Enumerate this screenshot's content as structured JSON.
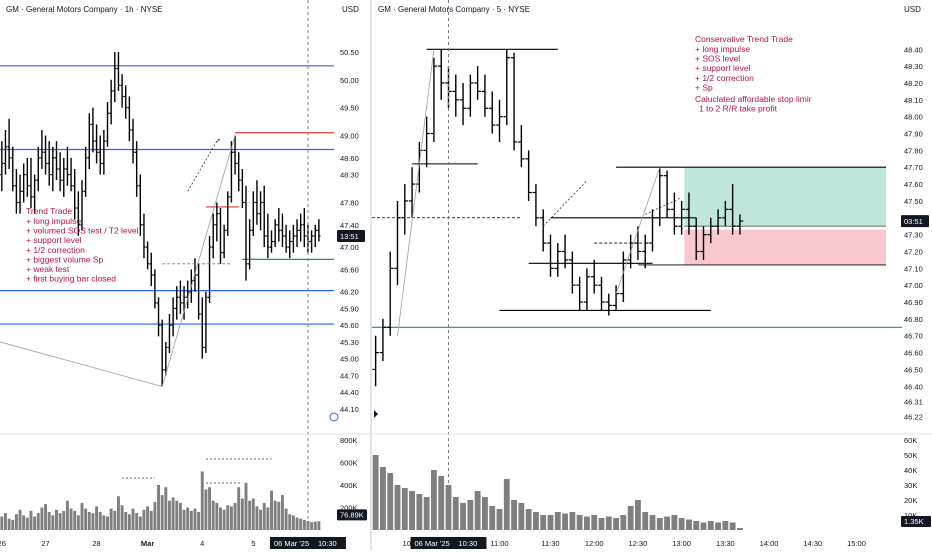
{
  "colors": {
    "bar": "#000000",
    "blue_level": "#2962ff",
    "red_level": "#e53935",
    "green_level": "#089981",
    "annotation_text": "#b7124e",
    "volume_bar": "#7f7f7f",
    "tp_zone": "#bfe6dc",
    "sl_zone": "#f9c8cf",
    "price_tag_bg": "#131722"
  },
  "chart_data": [
    {
      "type": "bar",
      "title": "GM · General Motors Company · 1h · NYSE",
      "currency": "USD",
      "ylim": [
        43.9,
        51.0
      ],
      "y_ticks": [
        "50.50",
        "50.00",
        "49.50",
        "49.00",
        "48.60",
        "48.30",
        "47.80",
        "47.40",
        "47.00",
        "46.60",
        "46.20",
        "45.90",
        "45.60",
        "45.30",
        "45.00",
        "44.70",
        "44.40",
        "44.10"
      ],
      "x_ticks": [
        "26",
        "27",
        "28",
        "Mar",
        "4",
        "5",
        "6"
      ],
      "x_tick_index": [
        0,
        12,
        26,
        40,
        55,
        69,
        84
      ],
      "current_price_label": "13:51",
      "date_tag": "06 Mar '25",
      "time_tag": "10:30",
      "ohlc": [
        [
          48.3,
          48.9,
          48.0,
          48.5
        ],
        [
          48.5,
          49.1,
          48.3,
          48.8
        ],
        [
          48.8,
          49.3,
          48.4,
          48.6
        ],
        [
          48.6,
          48.8,
          48.0,
          48.1
        ],
        [
          48.1,
          48.4,
          47.6,
          47.8
        ],
        [
          47.8,
          48.3,
          47.6,
          48.0
        ],
        [
          48.0,
          48.5,
          47.8,
          48.3
        ],
        [
          48.3,
          48.6,
          47.9,
          48.1
        ],
        [
          48.1,
          48.6,
          47.7,
          47.9
        ],
        [
          47.9,
          48.3,
          47.6,
          48.2
        ],
        [
          48.2,
          48.8,
          48.0,
          48.6
        ],
        [
          48.6,
          49.1,
          48.4,
          48.7
        ],
        [
          48.7,
          49.0,
          48.3,
          48.5
        ],
        [
          48.5,
          48.9,
          48.1,
          48.3
        ],
        [
          48.3,
          48.8,
          48.0,
          48.6
        ],
        [
          48.6,
          48.9,
          48.2,
          48.4
        ],
        [
          48.4,
          48.7,
          48.0,
          48.2
        ],
        [
          48.2,
          48.6,
          47.9,
          48.4
        ],
        [
          48.4,
          48.8,
          48.1,
          48.3
        ],
        [
          48.3,
          48.6,
          48.0,
          48.1
        ],
        [
          48.1,
          48.4,
          47.5,
          47.7
        ],
        [
          47.7,
          48.0,
          47.2,
          47.4
        ],
        [
          47.4,
          48.2,
          47.3,
          48.0
        ],
        [
          48.0,
          48.8,
          47.9,
          48.6
        ],
        [
          48.6,
          49.4,
          48.4,
          49.2
        ],
        [
          49.2,
          49.5,
          48.7,
          48.9
        ],
        [
          48.9,
          49.2,
          48.5,
          48.7
        ],
        [
          48.7,
          49.0,
          48.3,
          48.5
        ],
        [
          48.5,
          49.1,
          48.3,
          48.9
        ],
        [
          48.9,
          49.6,
          48.8,
          49.4
        ],
        [
          49.4,
          50.0,
          49.2,
          49.8
        ],
        [
          49.8,
          50.5,
          49.6,
          50.2
        ],
        [
          50.2,
          50.5,
          49.8,
          49.9
        ],
        [
          49.9,
          50.1,
          49.5,
          49.7
        ],
        [
          49.7,
          49.9,
          49.3,
          49.5
        ],
        [
          49.5,
          49.7,
          48.9,
          49.1
        ],
        [
          49.1,
          49.3,
          48.5,
          48.7
        ],
        [
          48.7,
          48.9,
          47.9,
          48.1
        ],
        [
          48.1,
          48.3,
          47.2,
          47.4
        ],
        [
          47.4,
          47.6,
          46.8,
          47.0
        ],
        [
          47.0,
          47.1,
          46.6,
          46.7
        ],
        [
          46.7,
          46.9,
          46.3,
          46.5
        ],
        [
          46.5,
          46.6,
          45.9,
          46.0
        ],
        [
          46.0,
          46.1,
          45.4,
          45.6
        ],
        [
          45.6,
          45.7,
          44.5,
          44.8
        ],
        [
          44.8,
          45.3,
          44.7,
          45.2
        ],
        [
          45.2,
          45.8,
          45.1,
          45.6
        ],
        [
          45.6,
          46.1,
          45.4,
          45.9
        ],
        [
          45.9,
          46.3,
          45.7,
          46.1
        ],
        [
          46.1,
          46.4,
          45.8,
          46.0
        ],
        [
          46.0,
          46.3,
          45.7,
          46.1
        ],
        [
          46.1,
          46.4,
          45.9,
          46.2
        ],
        [
          46.2,
          46.6,
          46.0,
          46.4
        ],
        [
          46.4,
          46.8,
          46.2,
          46.5
        ],
        [
          46.5,
          46.7,
          45.7,
          45.8
        ],
        [
          45.8,
          46.1,
          45.0,
          45.2
        ],
        [
          45.2,
          46.2,
          45.1,
          46.1
        ],
        [
          46.1,
          47.2,
          46.0,
          47.0
        ],
        [
          47.0,
          47.6,
          46.8,
          47.4
        ],
        [
          47.4,
          47.8,
          47.1,
          47.6
        ],
        [
          47.6,
          47.7,
          46.7,
          46.9
        ],
        [
          46.9,
          47.4,
          46.8,
          47.3
        ],
        [
          47.3,
          48.0,
          47.2,
          47.9
        ],
        [
          47.9,
          48.9,
          47.8,
          48.7
        ],
        [
          48.7,
          49.0,
          48.3,
          48.5
        ],
        [
          48.5,
          48.7,
          48.0,
          48.2
        ],
        [
          48.2,
          48.4,
          47.7,
          47.8
        ],
        [
          47.8,
          48.1,
          46.4,
          46.7
        ],
        [
          46.7,
          47.5,
          46.6,
          47.3
        ],
        [
          47.3,
          48.0,
          47.2,
          47.8
        ],
        [
          47.8,
          48.2,
          47.4,
          47.6
        ],
        [
          47.6,
          48.0,
          47.3,
          47.8
        ],
        [
          47.8,
          48.1,
          47.0,
          47.2
        ],
        [
          47.2,
          47.6,
          46.8,
          47.0
        ],
        [
          47.0,
          47.3,
          46.9,
          47.1
        ],
        [
          47.1,
          47.5,
          47.0,
          47.4
        ],
        [
          47.4,
          47.7,
          47.1,
          47.3
        ],
        [
          47.3,
          47.6,
          47.0,
          47.2
        ],
        [
          47.2,
          47.4,
          46.9,
          47.0
        ],
        [
          47.0,
          47.3,
          46.8,
          47.1
        ],
        [
          47.1,
          47.4,
          46.9,
          47.2
        ],
        [
          47.2,
          47.5,
          47.0,
          47.3
        ],
        [
          47.3,
          47.6,
          47.1,
          47.4
        ],
        [
          47.4,
          47.7,
          47.0,
          47.2
        ],
        [
          47.2,
          47.4,
          46.9,
          47.1
        ],
        [
          47.1,
          47.3,
          46.9,
          47.2
        ],
        [
          47.2,
          47.4,
          47.0,
          47.3
        ],
        [
          47.3,
          47.5,
          47.1,
          47.2
        ]
      ],
      "volume": {
        "ylim": [
          0,
          800000
        ],
        "y_ticks": [
          "800K",
          "600K",
          "400K",
          "200K"
        ],
        "current_label": "76.89K",
        "values": [
          120,
          150,
          100,
          90,
          140,
          180,
          130,
          110,
          170,
          120,
          150,
          200,
          230,
          160,
          130,
          180,
          150,
          170,
          260,
          190,
          170,
          130,
          240,
          190,
          160,
          150,
          210,
          160,
          130,
          120,
          190,
          170,
          300,
          220,
          160,
          140,
          190,
          150,
          120,
          180,
          210,
          170,
          250,
          400,
          310,
          380,
          260,
          290,
          260,
          240,
          180,
          200,
          170,
          190,
          160,
          520,
          360,
          380,
          260,
          240,
          200,
          180,
          220,
          210,
          240,
          380,
          280,
          420,
          260,
          280,
          210,
          180,
          240,
          200,
          350,
          260,
          250,
          310,
          190,
          140,
          130,
          110,
          100,
          90,
          80,
          70,
          75,
          77
        ]
      },
      "annotations": {
        "title": "Trend Trade",
        "lines": [
          "+ long impulse",
          "+ volumed SOS test / T2 level",
          "+ support level",
          "+ 1/2 correction",
          "+ biggest volume Sp",
          "+ weak test",
          "+ first buying bar closed"
        ]
      },
      "levels": {
        "blue": [
          50.25,
          48.75,
          46.22,
          45.62
        ],
        "red": 49.05,
        "green": 46.78,
        "red_short": 47.72
      }
    },
    {
      "type": "bar",
      "title": "GM · General Motors Company · 5 · NYSE",
      "currency": "USD",
      "ylim": [
        46.2,
        48.55
      ],
      "y_ticks": [
        "48.40",
        "48.30",
        "48.20",
        "48.10",
        "48.00",
        "47.90",
        "47.80",
        "47.70",
        "47.60",
        "47.50",
        "47.40",
        "47.30",
        "47.20",
        "47.10",
        "47.00",
        "46.90",
        "46.80",
        "46.70",
        "46.60",
        "46.50",
        "46.40",
        "46.31",
        "46.22"
      ],
      "x_ticks": [
        "10:00",
        "11:00",
        "11:30",
        "12:00",
        "12:30",
        "13:00",
        "13:30",
        "14:00",
        "14:30",
        "15:00"
      ],
      "x_tick_index": [
        5,
        17,
        24,
        30,
        36,
        42,
        48,
        54,
        60,
        66
      ],
      "current_price_label": "03:51",
      "date_tag": "06 Mar '25",
      "time_tag": "10:30",
      "ohlc": [
        [
          46.5,
          46.7,
          46.4,
          46.6
        ],
        [
          46.6,
          46.8,
          46.55,
          46.75
        ],
        [
          46.75,
          47.2,
          46.7,
          47.1
        ],
        [
          47.1,
          47.5,
          47.0,
          47.4
        ],
        [
          47.4,
          47.6,
          47.3,
          47.5
        ],
        [
          47.5,
          47.7,
          47.4,
          47.6
        ],
        [
          47.6,
          47.85,
          47.55,
          47.8
        ],
        [
          47.8,
          48.0,
          47.7,
          47.9
        ],
        [
          47.9,
          48.35,
          47.85,
          48.3
        ],
        [
          48.3,
          48.4,
          48.1,
          48.2
        ],
        [
          48.2,
          48.3,
          48.05,
          48.15
        ],
        [
          48.15,
          48.25,
          48.0,
          48.1
        ],
        [
          48.1,
          48.2,
          47.95,
          48.05
        ],
        [
          48.05,
          48.25,
          48.0,
          48.2
        ],
        [
          48.2,
          48.3,
          48.1,
          48.15
        ],
        [
          48.15,
          48.25,
          48.0,
          48.05
        ],
        [
          48.05,
          48.15,
          47.9,
          47.95
        ],
        [
          47.95,
          48.1,
          47.85,
          48.0
        ],
        [
          48.0,
          48.4,
          47.95,
          48.35
        ],
        [
          48.35,
          48.38,
          47.8,
          47.85
        ],
        [
          47.85,
          47.95,
          47.7,
          47.75
        ],
        [
          47.75,
          47.8,
          47.5,
          47.55
        ],
        [
          47.55,
          47.6,
          47.35,
          47.4
        ],
        [
          47.4,
          47.45,
          47.2,
          47.25
        ],
        [
          47.25,
          47.3,
          47.05,
          47.1
        ],
        [
          47.1,
          47.25,
          47.05,
          47.2
        ],
        [
          47.2,
          47.3,
          47.1,
          47.15
        ],
        [
          47.15,
          47.2,
          46.95,
          47.0
        ],
        [
          47.0,
          47.05,
          46.85,
          46.9
        ],
        [
          46.9,
          47.1,
          46.85,
          47.05
        ],
        [
          47.05,
          47.15,
          46.95,
          47.0
        ],
        [
          47.0,
          47.05,
          46.85,
          46.9
        ],
        [
          46.9,
          46.95,
          46.82,
          46.88
        ],
        [
          46.88,
          47.0,
          46.85,
          46.95
        ],
        [
          46.95,
          47.2,
          46.9,
          47.15
        ],
        [
          47.15,
          47.3,
          47.1,
          47.25
        ],
        [
          47.25,
          47.35,
          47.15,
          47.2
        ],
        [
          47.2,
          47.3,
          47.1,
          47.25
        ],
        [
          47.25,
          47.45,
          47.2,
          47.4
        ],
        [
          47.4,
          47.7,
          47.35,
          47.65
        ],
        [
          47.65,
          47.68,
          47.4,
          47.45
        ],
        [
          47.45,
          47.55,
          47.3,
          47.35
        ],
        [
          47.35,
          47.5,
          47.3,
          47.45
        ],
        [
          47.45,
          47.55,
          47.3,
          47.35
        ],
        [
          47.35,
          47.4,
          47.15,
          47.2
        ],
        [
          47.2,
          47.35,
          47.15,
          47.3
        ],
        [
          47.3,
          47.4,
          47.25,
          47.35
        ],
        [
          47.35,
          47.45,
          47.3,
          47.4
        ],
        [
          47.4,
          47.5,
          47.35,
          47.45
        ],
        [
          47.45,
          47.6,
          47.3,
          47.35
        ],
        [
          47.35,
          47.42,
          47.3,
          47.38
        ]
      ],
      "volume": {
        "ylim": [
          0,
          60000
        ],
        "y_ticks": [
          "60K",
          "50K",
          "40K",
          "30K",
          "20K",
          "10K"
        ],
        "current_label": "1.35K",
        "values": [
          50,
          42,
          38,
          30,
          28,
          26,
          24,
          22,
          40,
          36,
          30,
          22,
          18,
          20,
          26,
          22,
          16,
          14,
          34,
          20,
          18,
          14,
          12,
          10,
          10,
          12,
          11,
          12,
          10,
          9,
          10,
          8,
          9,
          8,
          10,
          16,
          20,
          12,
          10,
          8,
          9,
          10,
          8,
          7,
          6,
          5,
          6,
          5,
          6,
          5,
          1.35
        ]
      },
      "annotations": {
        "title": "Conservative Trend Trade",
        "lines": [
          "+ long impulse",
          "+ SOS level",
          "+ support level",
          "+ 1/2 correction",
          "+ Sp"
        ],
        "note_lines": [
          "Caluclated affordable stop limir",
          "1 to 2 R/R take profit"
        ]
      },
      "levels": {
        "green": 46.75,
        "tp_zone": [
          47.35,
          47.7
        ],
        "sl_zone": [
          47.12,
          47.33
        ],
        "entry": 47.35
      }
    }
  ]
}
